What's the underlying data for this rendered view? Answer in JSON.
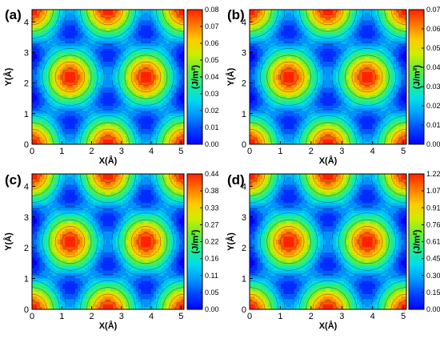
{
  "chart_data": [
    {
      "type": "heatmap",
      "panel_label": "(a)",
      "xlabel": "X(Å)",
      "ylabel": "Y(Å)",
      "xlim": [
        0,
        5.1
      ],
      "ylim": [
        0,
        4.4
      ],
      "x_ticks": [
        0,
        1,
        2,
        3,
        4,
        5
      ],
      "y_ticks": [
        0,
        1,
        2,
        3,
        4
      ],
      "colorbar": {
        "label": "(J/m²)",
        "min": 0.0,
        "max": 0.08,
        "ticks": [
          "0.00",
          "0.01",
          "0.02",
          "0.03",
          "0.04",
          "0.05",
          "0.06",
          "0.07",
          "0.08"
        ]
      },
      "maxima": [
        [
          0,
          0
        ],
        [
          2.55,
          0
        ],
        [
          5.1,
          0
        ],
        [
          1.275,
          2.2
        ],
        [
          3.825,
          2.2
        ],
        [
          0,
          4.4
        ],
        [
          2.55,
          4.4
        ],
        [
          5.1,
          4.4
        ]
      ],
      "minima": [
        [
          1.275,
          0.73
        ],
        [
          3.825,
          0.73
        ],
        [
          0,
          1.47
        ],
        [
          2.55,
          1.47
        ],
        [
          5.1,
          1.47
        ],
        [
          0,
          2.93
        ],
        [
          2.55,
          2.93
        ],
        [
          5.1,
          2.93
        ],
        [
          1.275,
          3.67
        ],
        [
          3.825,
          3.67
        ]
      ]
    },
    {
      "type": "heatmap",
      "panel_label": "(b)",
      "xlabel": "X(Å)",
      "ylabel": "Y(Å)",
      "xlim": [
        0,
        5.1
      ],
      "ylim": [
        0,
        4.4
      ],
      "x_ticks": [
        0,
        1,
        2,
        3,
        4,
        5
      ],
      "y_ticks": [
        0,
        1,
        2,
        3,
        4
      ],
      "colorbar": {
        "label": "(J/m²)",
        "min": 0.0,
        "max": 0.07,
        "ticks": [
          "0.00",
          "0.01",
          "0.02",
          "0.03",
          "0.04",
          "0.05",
          "0.06",
          "0.07"
        ]
      },
      "maxima": [
        [
          0,
          0
        ],
        [
          2.55,
          0
        ],
        [
          5.1,
          0
        ],
        [
          1.275,
          2.2
        ],
        [
          3.825,
          2.2
        ],
        [
          0,
          4.4
        ],
        [
          2.55,
          4.4
        ],
        [
          5.1,
          4.4
        ]
      ],
      "minima": [
        [
          1.275,
          0.73
        ],
        [
          3.825,
          0.73
        ],
        [
          0,
          1.47
        ],
        [
          2.55,
          1.47
        ],
        [
          5.1,
          1.47
        ],
        [
          0,
          2.93
        ],
        [
          2.55,
          2.93
        ],
        [
          5.1,
          2.93
        ],
        [
          1.275,
          3.67
        ],
        [
          3.825,
          3.67
        ]
      ]
    },
    {
      "type": "heatmap",
      "panel_label": "(c)",
      "xlabel": "X(Å)",
      "ylabel": "Y(Å)",
      "xlim": [
        0,
        5.1
      ],
      "ylim": [
        0,
        4.4
      ],
      "x_ticks": [
        0,
        1,
        2,
        3,
        4,
        5
      ],
      "y_ticks": [
        0,
        1,
        2,
        3,
        4
      ],
      "colorbar": {
        "label": "(J/m²)",
        "min": 0.0,
        "max": 0.44,
        "ticks": [
          "0.00",
          "0.05",
          "0.11",
          "0.16",
          "0.22",
          "0.27",
          "0.33",
          "0.38",
          "0.44"
        ]
      },
      "maxima": [
        [
          0,
          0
        ],
        [
          2.55,
          0
        ],
        [
          5.1,
          0
        ],
        [
          1.275,
          2.2
        ],
        [
          3.825,
          2.2
        ],
        [
          0,
          4.4
        ],
        [
          2.55,
          4.4
        ],
        [
          5.1,
          4.4
        ]
      ],
      "minima": [
        [
          1.275,
          0.73
        ],
        [
          3.825,
          0.73
        ],
        [
          0,
          1.47
        ],
        [
          2.55,
          1.47
        ],
        [
          5.1,
          1.47
        ],
        [
          0,
          2.93
        ],
        [
          2.55,
          2.93
        ],
        [
          5.1,
          2.93
        ],
        [
          1.275,
          3.67
        ],
        [
          3.825,
          3.67
        ]
      ]
    },
    {
      "type": "heatmap",
      "panel_label": "(d)",
      "xlabel": "X(Å)",
      "ylabel": "Y(Å)",
      "xlim": [
        0,
        5.1
      ],
      "ylim": [
        0,
        4.4
      ],
      "x_ticks": [
        0,
        1,
        2,
        3,
        4,
        5
      ],
      "y_ticks": [
        0,
        1,
        2,
        3,
        4
      ],
      "colorbar": {
        "label": "(J/m²)",
        "min": 0.0,
        "max": 1.22,
        "ticks": [
          "0.00",
          "0.15",
          "0.30",
          "0.45",
          "0.61",
          "0.76",
          "0.91",
          "1.07",
          "1.22"
        ]
      },
      "maxima": [
        [
          0,
          0
        ],
        [
          2.55,
          0
        ],
        [
          5.1,
          0
        ],
        [
          1.275,
          2.2
        ],
        [
          3.825,
          2.2
        ],
        [
          0,
          4.4
        ],
        [
          2.55,
          4.4
        ],
        [
          5.1,
          4.4
        ]
      ],
      "minima": [
        [
          1.275,
          0.73
        ],
        [
          3.825,
          0.73
        ],
        [
          0,
          1.47
        ],
        [
          2.55,
          1.47
        ],
        [
          5.1,
          1.47
        ],
        [
          0,
          2.93
        ],
        [
          2.55,
          2.93
        ],
        [
          5.1,
          2.93
        ],
        [
          1.275,
          3.67
        ],
        [
          3.825,
          3.67
        ]
      ]
    }
  ],
  "colors": {
    "colormap": [
      "#0000ff",
      "#0044ff",
      "#0099ff",
      "#00ddee",
      "#22ee88",
      "#66ee33",
      "#ccee00",
      "#ffcc00",
      "#ff7700",
      "#ff2200"
    ],
    "contour_line": "#1a3a3a",
    "axis": "#000000"
  }
}
